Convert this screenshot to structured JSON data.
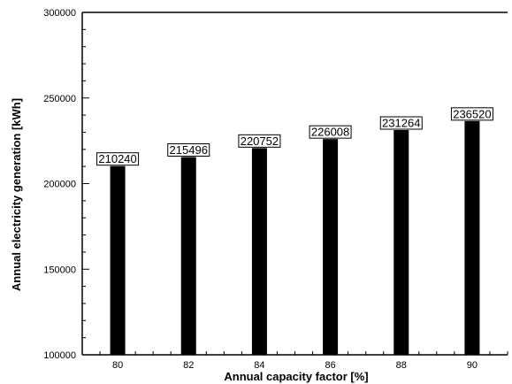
{
  "chart_data": {
    "type": "bar",
    "categories": [
      "80",
      "82",
      "84",
      "86",
      "88",
      "90"
    ],
    "values": [
      210240,
      215496,
      220752,
      226008,
      231264,
      236520
    ],
    "data_labels": [
      "210240",
      "215496",
      "220752",
      "226008",
      "231264",
      "236520"
    ],
    "xlabel": "Annual capacity factor [%]",
    "ylabel": "Annual electricity generation [kWh]",
    "ylim": [
      100000,
      300000
    ],
    "yticks": [
      100000,
      150000,
      200000,
      250000,
      300000
    ],
    "ytick_labels": [
      "100000",
      "150000",
      "200000",
      "250000",
      "300000"
    ],
    "xlim": [
      79,
      91
    ],
    "grid": false,
    "bar_color": "#000000"
  }
}
